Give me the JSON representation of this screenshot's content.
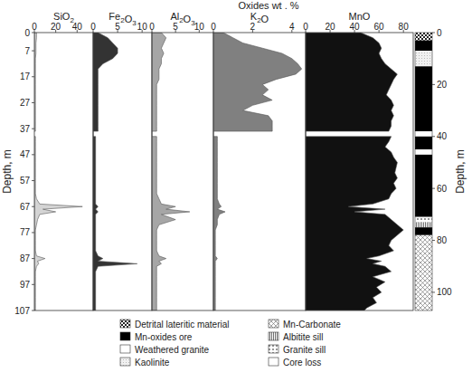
{
  "chart_data": {
    "type": "area",
    "title": "Oxides wt . %",
    "x_label": "Depth, m",
    "x2_label": "Depth, m",
    "xlim": [
      0,
      107
    ],
    "xticks": [
      0,
      7,
      17,
      27,
      37,
      47,
      57,
      67,
      77,
      87,
      97,
      107
    ],
    "x2lim": [
      0,
      107
    ],
    "x2ticks": [
      0,
      20,
      40,
      60,
      80,
      100
    ],
    "x": [
      0,
      2,
      4,
      6,
      8,
      10,
      12,
      14,
      16,
      18,
      20,
      22,
      24,
      26,
      28,
      30,
      32,
      34,
      36,
      38,
      39,
      40,
      42,
      44,
      46,
      48,
      50,
      52,
      54,
      56,
      58,
      60,
      62,
      64,
      66,
      67,
      68,
      69,
      70,
      72,
      74,
      76,
      78,
      80,
      82,
      84,
      86,
      87,
      88,
      89,
      90,
      92,
      94,
      96,
      98,
      100,
      102,
      104,
      106,
      107
    ],
    "series": [
      {
        "name": "SiO2",
        "color": "#d4d4d4",
        "ylim": [
          0,
          55
        ],
        "yticks": [
          0,
          20,
          40
        ],
        "values": [
          2,
          2,
          1.5,
          1.5,
          1.5,
          1,
          1,
          1,
          1,
          1,
          1,
          1,
          1,
          1,
          1,
          1,
          1,
          1,
          1,
          1,
          null,
          1,
          1,
          1,
          1,
          1,
          1,
          1,
          1,
          1,
          1,
          1,
          1,
          2,
          5,
          45,
          8,
          20,
          5,
          3,
          2,
          1,
          1,
          1,
          1,
          1,
          2,
          10,
          3,
          4,
          2,
          1,
          1,
          1,
          1,
          1,
          1,
          1,
          1,
          1
        ]
      },
      {
        "name": "Fe2O3",
        "color": "#333333",
        "ylim": [
          0,
          12
        ],
        "yticks": [
          0,
          5,
          10
        ],
        "values": [
          1,
          3,
          4,
          5,
          5,
          4,
          2,
          1,
          1,
          1,
          1,
          1,
          1,
          1,
          1,
          1,
          1,
          1,
          1,
          1,
          null,
          0.5,
          0.5,
          0.5,
          0.5,
          0.5,
          0.5,
          0.5,
          0.5,
          0.5,
          0.5,
          0.5,
          0.5,
          0.5,
          0.5,
          1,
          0.5,
          1,
          0.5,
          0.5,
          0.5,
          0.5,
          0.5,
          0.5,
          0.5,
          0.5,
          1,
          2,
          1,
          9,
          1,
          0.5,
          0.5,
          0.5,
          0.5,
          0.5,
          0.5,
          0.5,
          0.5,
          0.5
        ]
      },
      {
        "name": "Al2O3",
        "color": "#a6a6a6",
        "ylim": [
          0,
          13
        ],
        "yticks": [
          0,
          5,
          10
        ],
        "values": [
          2,
          3,
          2.5,
          2,
          2.5,
          2,
          2,
          1.5,
          1.5,
          1.5,
          1,
          1,
          1,
          1,
          1,
          1,
          1,
          1,
          1,
          1,
          null,
          1,
          1,
          1,
          1,
          1,
          1,
          1,
          1,
          1,
          1,
          1,
          1,
          1.5,
          2,
          5,
          3,
          8,
          2,
          5,
          1.5,
          1,
          1,
          1,
          1,
          1,
          1.5,
          3,
          1.5,
          2,
          1,
          1,
          1,
          1,
          1,
          1,
          1,
          1,
          1,
          1
        ]
      },
      {
        "name": "K2O",
        "color": "#808080",
        "ylim": [
          0,
          4.7
        ],
        "yticks": [
          0,
          2,
          4
        ],
        "values": [
          0.5,
          1,
          1.5,
          2.5,
          3.5,
          4,
          4.3,
          4.5,
          4.2,
          3.2,
          2.5,
          2.8,
          2.5,
          3,
          2,
          1.5,
          2.8,
          3,
          3,
          3,
          null,
          0.2,
          0.2,
          0.2,
          0.2,
          0.2,
          0.2,
          0.2,
          0.2,
          0.2,
          0.2,
          0.2,
          0.2,
          0.2,
          0.3,
          0.4,
          0.2,
          0.6,
          0.3,
          0.2,
          0.2,
          0.1,
          0.1,
          0.1,
          0.1,
          0.1,
          0.1,
          0.2,
          0.1,
          0.1,
          0.1,
          0.1,
          0.1,
          0.1,
          0.1,
          0.1,
          0.1,
          0.1,
          0.1,
          0.1
        ]
      },
      {
        "name": "MnO",
        "color": "#111111",
        "ylim": [
          0,
          88
        ],
        "yticks": [
          0,
          20,
          40,
          60,
          80
        ],
        "values": [
          45,
          55,
          60,
          62,
          60,
          62,
          65,
          70,
          75,
          72,
          70,
          68,
          66,
          70,
          72,
          70,
          72,
          70,
          70,
          68,
          null,
          70,
          68,
          65,
          70,
          72,
          75,
          74,
          73,
          75,
          72,
          74,
          70,
          68,
          55,
          35,
          65,
          40,
          65,
          70,
          75,
          80,
          75,
          70,
          68,
          72,
          60,
          50,
          62,
          55,
          65,
          70,
          55,
          65,
          58,
          62,
          55,
          58,
          50,
          48
        ]
      }
    ],
    "legend_entries": [
      "Detrital lateritic material",
      "Mn-oxides ore",
      "Weathered granite",
      "Kaolinite",
      "Mn-Carbonate",
      "Albitite sill",
      "Granite sill",
      "Core loss"
    ],
    "lithology": [
      {
        "from": 0,
        "to": 3,
        "unit": "Detrital lateritic material"
      },
      {
        "from": 3,
        "to": 7,
        "unit": "Mn-oxides ore"
      },
      {
        "from": 7,
        "to": 13,
        "unit": "Kaolinite"
      },
      {
        "from": 13,
        "to": 38,
        "unit": "Mn-oxides ore"
      },
      {
        "from": 38,
        "to": 40,
        "unit": "Core loss"
      },
      {
        "from": 40,
        "to": 45,
        "unit": "Mn-oxides ore"
      },
      {
        "from": 45,
        "to": 47,
        "unit": "Weathered granite"
      },
      {
        "from": 47,
        "to": 71,
        "unit": "Mn-oxides ore"
      },
      {
        "from": 71,
        "to": 73,
        "unit": "Granite sill"
      },
      {
        "from": 73,
        "to": 75,
        "unit": "Albitite sill"
      },
      {
        "from": 75,
        "to": 78,
        "unit": "Mn-oxides ore"
      },
      {
        "from": 78,
        "to": 107,
        "unit": "Mn-Carbonate"
      }
    ]
  }
}
